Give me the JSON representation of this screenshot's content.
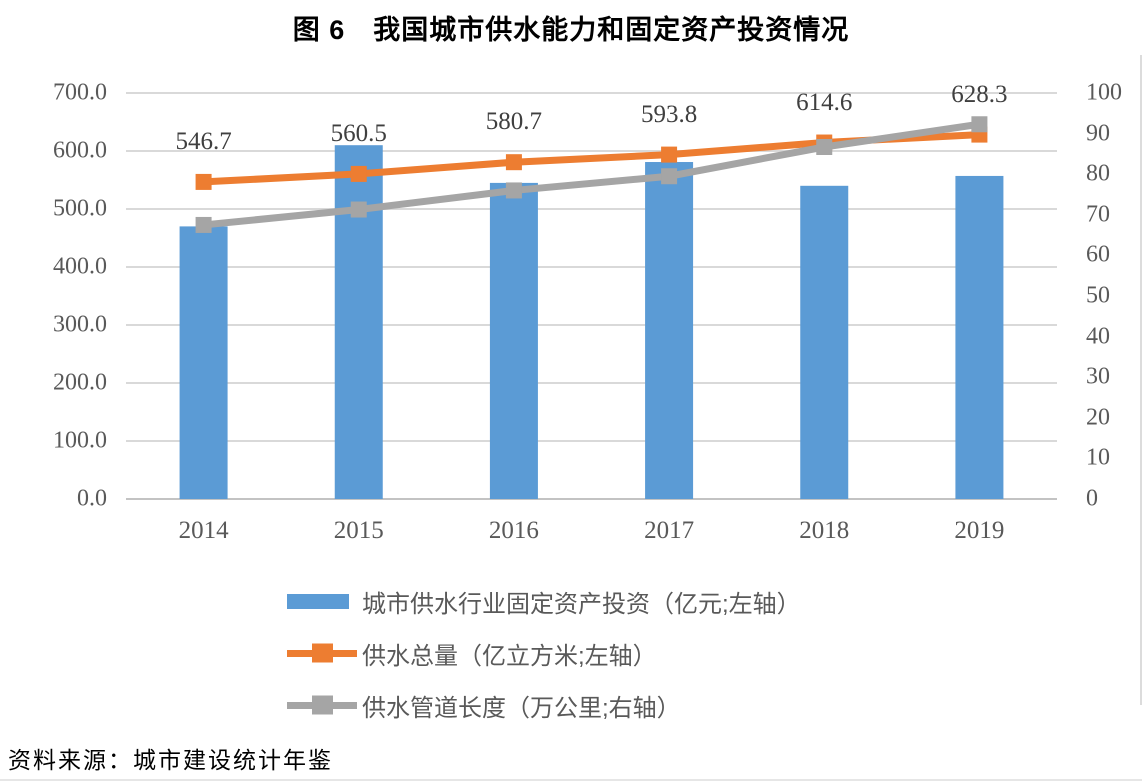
{
  "title": "图 6　我国城市供水能力和固定资产投资情况",
  "source_note": "资料来源：城市建设统计年鉴",
  "colors": {
    "bar_blue": "#5B9BD5",
    "line_orange": "#ED7D31",
    "line_gray": "#A5A5A5",
    "gridline": "#D9D9D9",
    "baseline": "#C3C3C3",
    "axis_text": "#595959",
    "data_label_text": "#3F3F3F"
  },
  "chart_data": {
    "type": "combo",
    "title": "图 6　我国城市供水能力和固定资产投资情况",
    "categories": [
      "2014",
      "2015",
      "2016",
      "2017",
      "2018",
      "2019"
    ],
    "series": [
      {
        "name": "城市供水行业固定资产投资（亿元;左轴）",
        "type": "bar",
        "axis": "left",
        "color": "#5B9BD5",
        "values": [
          470,
          610,
          545,
          581,
          540,
          557
        ]
      },
      {
        "name": "供水总量（亿立方米;左轴）",
        "type": "line",
        "axis": "left",
        "color": "#ED7D31",
        "values": [
          546.7,
          560.5,
          580.7,
          593.8,
          614.6,
          628.3
        ],
        "data_labels": [
          "546.7",
          "560.5",
          "580.7",
          "593.8",
          "614.6",
          "628.3"
        ]
      },
      {
        "name": "供水管道长度（万公里;右轴）",
        "type": "line",
        "axis": "right",
        "color": "#A5A5A5",
        "values": [
          67.5,
          71.3,
          76.0,
          79.5,
          86.7,
          92.3
        ]
      }
    ],
    "left_axis": {
      "min": 0,
      "max": 700,
      "step": 100,
      "tick_labels": [
        "0.0",
        "100.0",
        "200.0",
        "300.0",
        "400.0",
        "500.0",
        "600.0",
        "700.0"
      ]
    },
    "right_axis": {
      "min": 0,
      "max": 100,
      "step": 10,
      "tick_labels": [
        "0",
        "10",
        "20",
        "30",
        "40",
        "50",
        "60",
        "70",
        "80",
        "90",
        "100"
      ]
    },
    "grid": true,
    "legend_position": "bottom-left"
  },
  "legend": {
    "items": [
      {
        "swatch": "bar",
        "color": "#5B9BD5",
        "label": "城市供水行业固定资产投资（亿元;左轴）"
      },
      {
        "swatch": "line-square",
        "color": "#ED7D31",
        "label": "供水总量（亿立方米;左轴）"
      },
      {
        "swatch": "line-square",
        "color": "#A5A5A5",
        "label": "供水管道长度（万公里;右轴）"
      }
    ]
  }
}
